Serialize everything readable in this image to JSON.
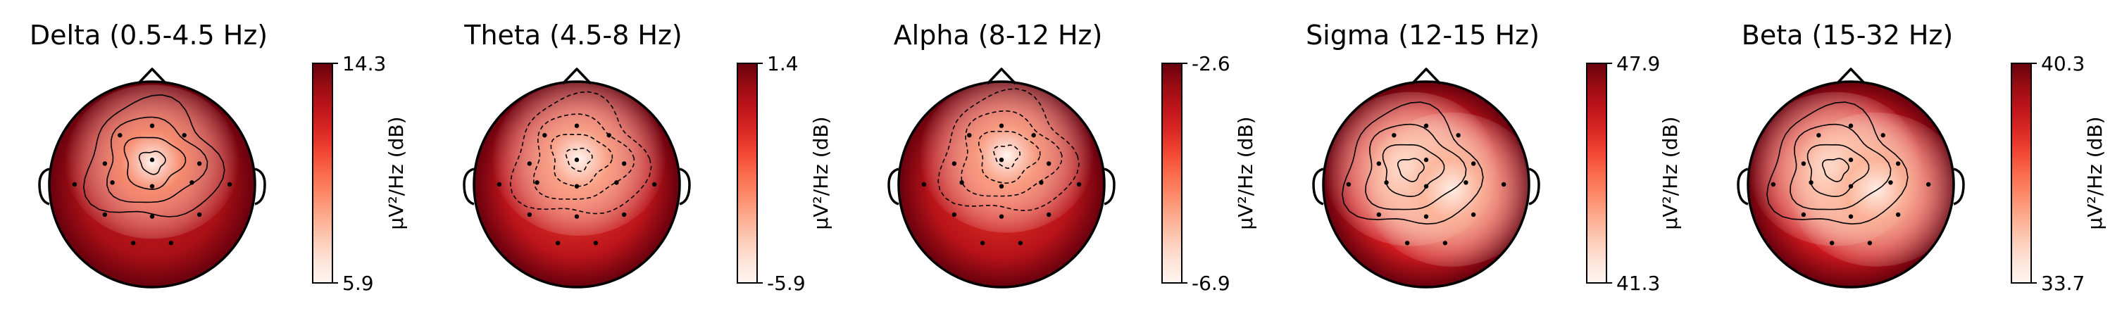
{
  "chart_data": [
    {
      "type": "heatmap",
      "title": "Delta (0.5-4.5 Hz)",
      "colorbar": {
        "label": "μV²/Hz (dB)",
        "min": 5.9,
        "max": 14.3,
        "min_label": "5.9",
        "max_label": "14.3"
      },
      "colormap": "Reds",
      "hotspots": [
        {
          "x": 0.0,
          "y": 0.22,
          "value": 5.9
        }
      ],
      "background_value": 12.0,
      "edge_value": 14.3
    },
    {
      "type": "heatmap",
      "title": "Theta (4.5-8 Hz)",
      "colorbar": {
        "label": "μV²/Hz (dB)",
        "min": -5.9,
        "max": 1.4,
        "min_label": "-5.9",
        "max_label": "1.4"
      },
      "colormap": "Reds",
      "hotspots": [
        {
          "x": 0.02,
          "y": 0.25,
          "value": -5.9
        }
      ],
      "background_value": -1.5,
      "edge_value": 1.4
    },
    {
      "type": "heatmap",
      "title": "Alpha (8-12 Hz)",
      "colorbar": {
        "label": "μV²/Hz (dB)",
        "min": -6.9,
        "max": -2.6,
        "min_label": "-6.9",
        "max_label": "-2.6"
      },
      "colormap": "Reds",
      "hotspots": [
        {
          "x": 0.05,
          "y": 0.28,
          "value": -6.9
        }
      ],
      "background_value": -4.2,
      "edge_value": -2.6
    },
    {
      "type": "heatmap",
      "title": "Sigma (12-15 Hz)",
      "colorbar": {
        "label": "μV²/Hz (dB)",
        "min": 41.3,
        "max": 47.9,
        "min_label": "41.3",
        "max_label": "47.9"
      },
      "colormap": "Reds",
      "hotspots": [
        {
          "x": -0.15,
          "y": 0.15,
          "value": 41.3
        },
        {
          "x": 0.25,
          "y": -0.05,
          "value": 41.6
        }
      ],
      "background_value": 44.5,
      "edge_value": 47.9
    },
    {
      "type": "heatmap",
      "title": "Beta (15-32 Hz)",
      "colorbar": {
        "label": "μV²/Hz (dB)",
        "min": 33.7,
        "max": 40.3,
        "min_label": "33.7",
        "max_label": "40.3"
      },
      "colormap": "Reds",
      "hotspots": [
        {
          "x": -0.15,
          "y": 0.15,
          "value": 33.7
        },
        {
          "x": 0.25,
          "y": -0.05,
          "value": 34.0
        }
      ],
      "background_value": 37.0,
      "edge_value": 40.3
    }
  ]
}
